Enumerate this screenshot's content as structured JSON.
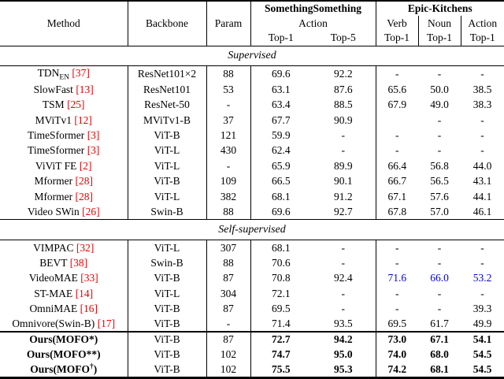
{
  "colors": {
    "citation": "#ee0000",
    "highlight": "#0000ee",
    "rule": "#000000"
  },
  "header": {
    "method": "Method",
    "backbone": "Backbone",
    "param": "Param",
    "ss": {
      "title": "SomethingSomething",
      "subtitle": "Action",
      "col1": "Top-1",
      "col2": "Top-5"
    },
    "epic": {
      "title": "Epic-Kitchens",
      "cols": [
        {
          "name": "Verb",
          "metric": "Top-1"
        },
        {
          "name": "Noun",
          "metric": "Top-1"
        },
        {
          "name": "Action",
          "metric": "Top-1"
        }
      ]
    }
  },
  "sections": [
    {
      "label": "Supervised",
      "rows": [
        {
          "method": {
            "pre": "TDN",
            "sub": "EN",
            "cite": "[37]"
          },
          "backbone": "ResNet101×2",
          "param": "88",
          "top1": "69.6",
          "top5": "92.2",
          "verb": "-",
          "noun": "-",
          "action": "-"
        },
        {
          "method": {
            "pre": "SlowFast",
            "cite": "[13]"
          },
          "backbone": "ResNet101",
          "param": "53",
          "top1": "63.1",
          "top5": "87.6",
          "verb": "65.6",
          "noun": "50.0",
          "action": "38.5"
        },
        {
          "method": {
            "pre": "TSM",
            "cite": "[25]"
          },
          "backbone": "ResNet-50",
          "param": "-",
          "top1": "63.4",
          "top5": "88.5",
          "verb": "67.9",
          "noun": "49.0",
          "action": "38.3"
        },
        {
          "method": {
            "pre": "MViTv1",
            "cite": "[12]"
          },
          "backbone": "MViTv1-B",
          "param": "37",
          "top1": "67.7",
          "top5": "90.9",
          "verb": "",
          "noun": "-",
          "action": "-"
        },
        {
          "method": {
            "pre": "TimeSformer",
            "cite": "[3]"
          },
          "backbone": "ViT-B",
          "param": "121",
          "top1": "59.9",
          "top5": "-",
          "verb": "-",
          "noun": "-",
          "action": "-"
        },
        {
          "method": {
            "pre": "TimeSformer",
            "cite": "[3]"
          },
          "backbone": "ViT-L",
          "param": "430",
          "top1": "62.4",
          "top5": "-",
          "verb": "-",
          "noun": "-",
          "action": "-"
        },
        {
          "method": {
            "pre": "ViViT FE",
            "cite": "[2]"
          },
          "backbone": "ViT-L",
          "param": "-",
          "top1": "65.9",
          "top5": "89.9",
          "verb": "66.4",
          "noun": "56.8",
          "action": "44.0"
        },
        {
          "method": {
            "pre": "Mformer",
            "cite": "[28]"
          },
          "backbone": "ViT-B",
          "param": "109",
          "top1": "66.5",
          "top5": "90.1",
          "verb": "66.7",
          "noun": "56.5",
          "action": "43.1"
        },
        {
          "method": {
            "pre": "Mformer",
            "cite": "[28]"
          },
          "backbone": "ViT-L",
          "param": "382",
          "top1": "68.1",
          "top5": "91.2",
          "verb": "67.1",
          "noun": "57.6",
          "action": "44.1"
        },
        {
          "method": {
            "pre": "Video SWin",
            "cite": "[26]"
          },
          "backbone": "Swin-B",
          "param": "88",
          "top1": "69.6",
          "top5": "92.7",
          "verb": "67.8",
          "noun": "57.0",
          "action": "46.1"
        }
      ]
    },
    {
      "label": "Self-supervised",
      "rows": [
        {
          "method": {
            "pre": "VIMPAC",
            "cite": "[32]"
          },
          "backbone": "ViT-L",
          "param": "307",
          "top1": "68.1",
          "top5": "-",
          "verb": "-",
          "noun": "-",
          "action": "-"
        },
        {
          "method": {
            "pre": "BEVT",
            "cite": "[38]"
          },
          "backbone": "Swin-B",
          "param": "88",
          "top1": "70.6",
          "top5": "-",
          "verb": "-",
          "noun": "-",
          "action": "-"
        },
        {
          "method": {
            "pre": "VideoMAE",
            "cite": "[33]"
          },
          "backbone": "ViT-B",
          "param": "87",
          "top1": "70.8",
          "top5": "92.4",
          "verb": "71.6",
          "noun": "66.0",
          "action": "53.2",
          "highlight": true
        },
        {
          "method": {
            "pre": "ST-MAE",
            "cite": "[14]"
          },
          "backbone": "ViT-L",
          "param": "304",
          "top1": "72.1",
          "top5": "-",
          "verb": "-",
          "noun": "-",
          "action": "-"
        },
        {
          "method": {
            "pre": "OmniMAE",
            "cite": "[16]"
          },
          "backbone": "ViT-B",
          "param": "87",
          "top1": "69.5",
          "top5": "-",
          "verb": "-",
          "noun": "-",
          "action": "39.3"
        },
        {
          "method": {
            "pre": "Omnivore(Swin-B)",
            "cite": "[17]"
          },
          "backbone": "ViT-B",
          "param": "-",
          "top1": "71.4",
          "top5": "93.5",
          "verb": "69.5",
          "noun": "61.7",
          "action": "49.9"
        }
      ]
    },
    {
      "label": "",
      "rows": [
        {
          "method": {
            "pre": "Ours(MOFO*)"
          },
          "backbone": "ViT-B",
          "param": "87",
          "top1": "72.7",
          "top5": "94.2",
          "verb": "73.0",
          "noun": "67.1",
          "action": "54.1",
          "bold": true
        },
        {
          "method": {
            "pre": "Ours(MOFO**)"
          },
          "backbone": "ViT-B",
          "param": "102",
          "top1": "74.7",
          "top5": "95.0",
          "verb": "74.0",
          "noun": "68.0",
          "action": "54.5",
          "bold": true
        },
        {
          "method": {
            "pre": "Ours(MOFO",
            "sup": "†",
            "post": ")"
          },
          "backbone": "ViT-B",
          "param": "102",
          "top1": "75.5",
          "top5": "95.3",
          "verb": "74.2",
          "noun": "68.1",
          "action": "54.5",
          "bold": true
        }
      ]
    }
  ]
}
